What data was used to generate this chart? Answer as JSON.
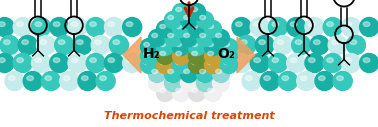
{
  "fig_width": 3.78,
  "fig_height": 1.27,
  "dpi": 100,
  "bg_color": "#ffffff",
  "teal_dark": "#18b0a4",
  "teal_mid": "#35c8bb",
  "teal_light": "#90d8d4",
  "teal_pale": "#c5ecea",
  "white_sphere": "#f0f0f0",
  "white_sphere2": "#e0e0e0",
  "gold_color": "#c8a035",
  "olive_color": "#6a8c30",
  "orange_arrow": "#f0a060",
  "red_arrow": "#cc2200",
  "text_orange": "#dd4400",
  "h2_label": "H₂",
  "o2_label": "O₂",
  "bottom_label": "Thermochemical treatment"
}
